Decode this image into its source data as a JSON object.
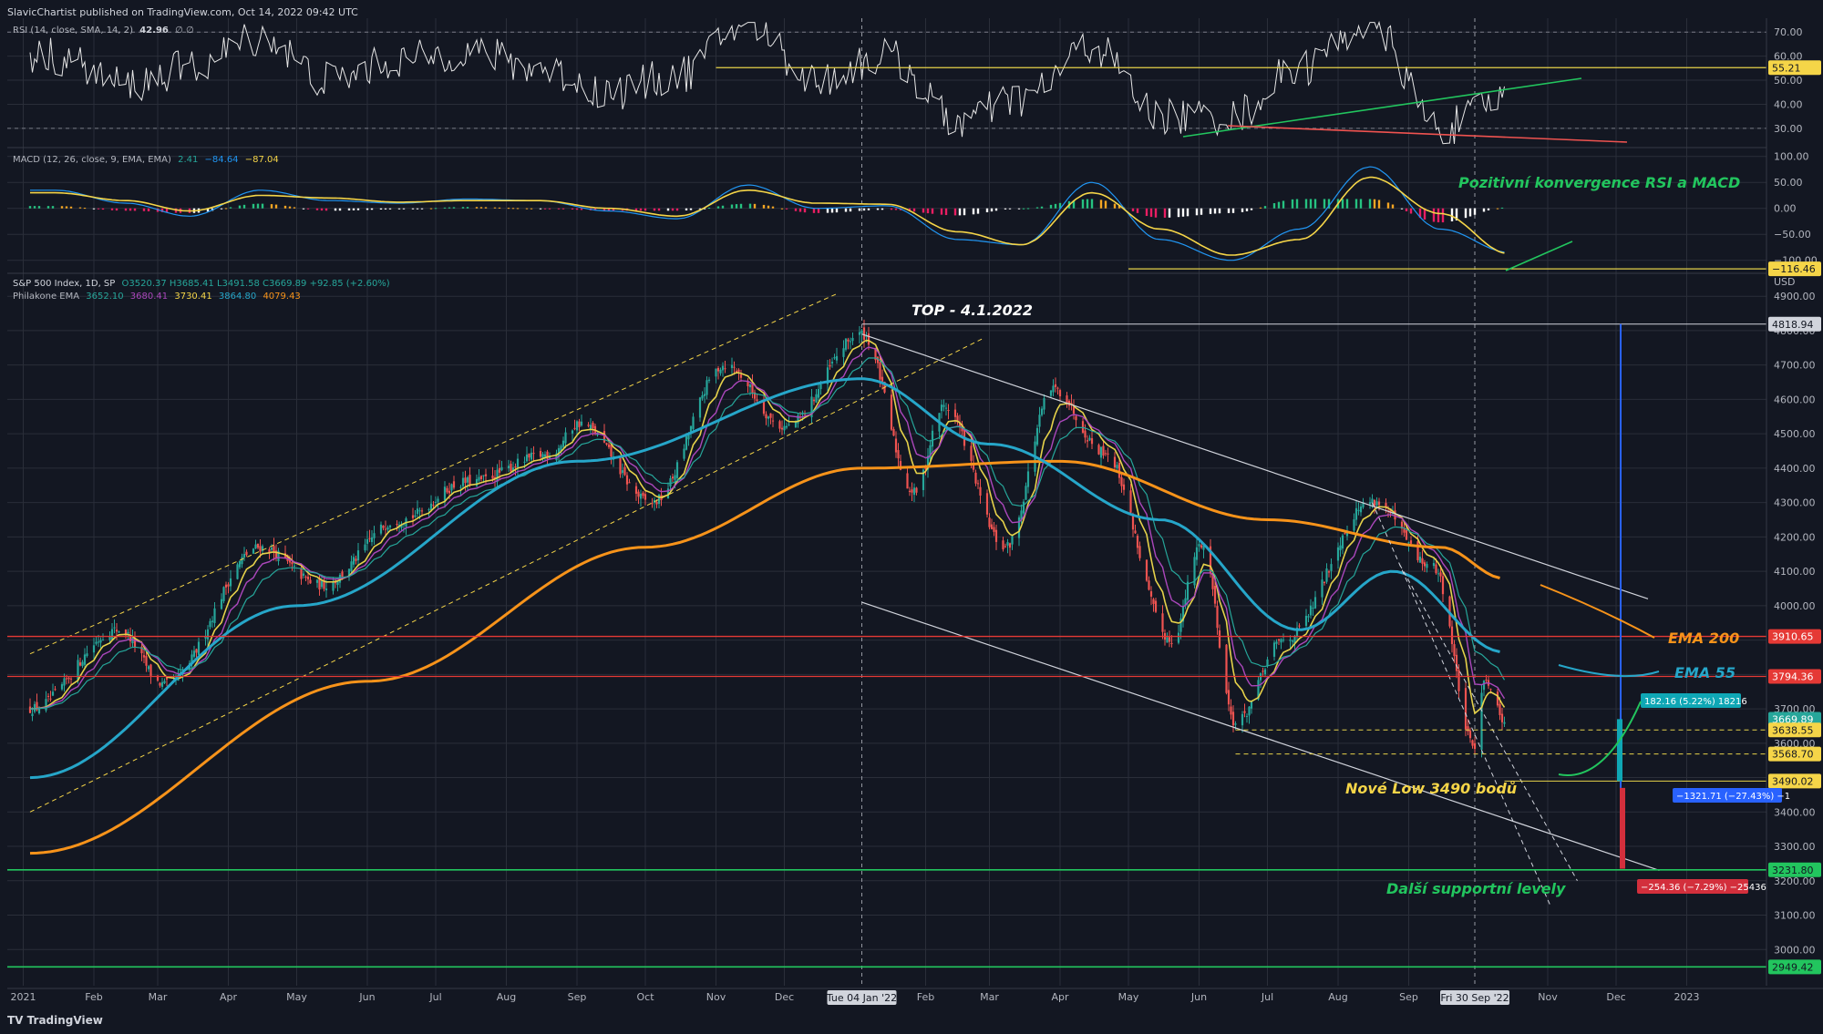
{
  "header": {
    "publisher_line": "SlavicChartist published on TradingView.com, Oct 14, 2022 09:42 UTC"
  },
  "footer": {
    "brand": "TradingView"
  },
  "rsi_legend": {
    "label": "RSI (14, close, SMA, 14, 2)",
    "value": "42.96",
    "extra": "∅ ∅"
  },
  "macd_legend": {
    "label": "MACD (12, 26, close, 9, EMA, EMA)",
    "v1": "2.41",
    "v2": "−84.64",
    "v3": "−87.04"
  },
  "price_legend": {
    "symbol": "S&P 500 Index, 1D, SP",
    "ohlc": "O3520.37  H3685.41  L3491.58  C3669.89  +92.85 (+2.60%)",
    "ema_label": "Philakone EMA",
    "ema_values": [
      "3652.10",
      "3680.41",
      "3730.41",
      "3864.80",
      "4079.43"
    ]
  },
  "colors": {
    "background": "#131722",
    "grid": "#2a2e39",
    "ema200": "#f7931a",
    "ema55": "#26a6c9",
    "ema_fast": "#e6d24a",
    "ema_mid": "#ab47bc",
    "up": "#26a69a",
    "down": "#ef5350",
    "support": "#22c55e",
    "resistance": "#e53935"
  },
  "chart_data": [
    {
      "type": "line",
      "name": "rsi_panel",
      "title": "RSI (14, close, SMA, 14, 2)",
      "y_ticks": [
        30,
        40,
        50,
        60,
        70
      ],
      "y_tick_labels": [
        "30.00",
        "40.00",
        "50.00",
        "60.00",
        "70.00"
      ],
      "ylim": [
        22,
        75
      ],
      "current_value": 42.96,
      "reference_level": 55.21,
      "reference_label": "55.21",
      "x": [
        "2021-01",
        "2021-02",
        "2021-03",
        "2021-04",
        "2021-05",
        "2021-06",
        "2021-07",
        "2021-08",
        "2021-09",
        "2021-10",
        "2021-11",
        "2021-12",
        "2022-01",
        "2022-02",
        "2022-03",
        "2022-04",
        "2022-05",
        "2022-06",
        "2022-07",
        "2022-08",
        "2022-09",
        "2022-10"
      ],
      "values": [
        60,
        48,
        55,
        68,
        50,
        58,
        62,
        55,
        45,
        52,
        74,
        50,
        60,
        33,
        42,
        64,
        35,
        35,
        55,
        74,
        30,
        42.96
      ]
    },
    {
      "type": "bar",
      "name": "macd_panel",
      "title": "MACD (12, 26, close, 9, EMA, EMA)",
      "y_ticks": [
        -100,
        -50,
        0,
        50,
        100
      ],
      "y_tick_labels": [
        "−100.00",
        "−50.00",
        "0.00",
        "50.00",
        "100.00"
      ],
      "ylim": [
        -125,
        110
      ],
      "reference_level": -116.46,
      "reference_label": "−116.46",
      "x": [
        "2021-01",
        "2021-02",
        "2021-03",
        "2021-04",
        "2021-05",
        "2021-06",
        "2021-07",
        "2021-08",
        "2021-09",
        "2021-10",
        "2021-11",
        "2021-12",
        "2022-01",
        "2022-02",
        "2022-03",
        "2022-04",
        "2022-05",
        "2022-06",
        "2022-07",
        "2022-08",
        "2022-09",
        "2022-10"
      ],
      "series": [
        {
          "name": "MACD",
          "values": [
            35,
            10,
            -15,
            35,
            15,
            10,
            18,
            15,
            -5,
            -20,
            45,
            0,
            5,
            -60,
            -70,
            50,
            -60,
            -100,
            -40,
            80,
            -40,
            -84.64
          ]
        },
        {
          "name": "Signal",
          "values": [
            30,
            15,
            -5,
            25,
            20,
            12,
            15,
            15,
            0,
            -15,
            35,
            10,
            8,
            -45,
            -70,
            30,
            -40,
            -90,
            -60,
            60,
            -10,
            -87.04
          ]
        }
      ]
    },
    {
      "type": "candlestick",
      "name": "price_panel",
      "title": "S&P 500 Index, 1D, SP",
      "currency": "USD",
      "y_ticks": [
        3000,
        3100,
        3200,
        3300,
        3400,
        3500,
        3600,
        3700,
        3800,
        3900,
        4000,
        4100,
        4200,
        4300,
        4400,
        4500,
        4600,
        4700,
        4800,
        4900
      ],
      "ylim": [
        2900,
        4980
      ],
      "x_tick_labels": [
        "2021",
        "Feb",
        "Mar",
        "Apr",
        "May",
        "Jun",
        "Jul",
        "Aug",
        "Sep",
        "Oct",
        "Nov",
        "Dec",
        "Feb",
        "Mar",
        "Apr",
        "May",
        "Jun",
        "Jul",
        "Aug",
        "Sep",
        "Nov",
        "Dec",
        "2023"
      ],
      "x_tick_dates": [
        "2021-01-01",
        "2021-02-01",
        "2021-03-01",
        "2021-04-01",
        "2021-05-01",
        "2021-06-01",
        "2021-07-01",
        "2021-08-01",
        "2021-09-01",
        "2021-10-01",
        "2021-11-01",
        "2021-12-01",
        "2022-02-01",
        "2022-03-01",
        "2022-04-01",
        "2022-05-01",
        "2022-06-01",
        "2022-07-01",
        "2022-08-01",
        "2022-09-01",
        "2022-11-01",
        "2022-12-01",
        "2023-01-01"
      ],
      "crosshair_labels": [
        {
          "date": "2022-01-04",
          "text": "Tue 04 Jan '22"
        },
        {
          "date": "2022-09-30",
          "text": "Fri 30 Sep '22"
        }
      ],
      "anchors": [
        {
          "date": "2021-01-04",
          "close": 3700
        },
        {
          "date": "2021-02-12",
          "close": 3930
        },
        {
          "date": "2021-03-04",
          "close": 3770
        },
        {
          "date": "2021-04-15",
          "close": 4170
        },
        {
          "date": "2021-05-12",
          "close": 4060
        },
        {
          "date": "2021-06-15",
          "close": 4250
        },
        {
          "date": "2021-07-15",
          "close": 4360
        },
        {
          "date": "2021-08-20",
          "close": 4440
        },
        {
          "date": "2021-09-02",
          "close": 4530
        },
        {
          "date": "2021-10-04",
          "close": 4300
        },
        {
          "date": "2021-11-05",
          "close": 4700
        },
        {
          "date": "2021-12-01",
          "close": 4520
        },
        {
          "date": "2022-01-04",
          "close": 4790
        },
        {
          "date": "2022-01-27",
          "close": 4330
        },
        {
          "date": "2022-02-09",
          "close": 4580
        },
        {
          "date": "2022-03-08",
          "close": 4170
        },
        {
          "date": "2022-03-29",
          "close": 4630
        },
        {
          "date": "2022-04-20",
          "close": 4450
        },
        {
          "date": "2022-05-20",
          "close": 3900
        },
        {
          "date": "2022-06-02",
          "close": 4180
        },
        {
          "date": "2022-06-17",
          "close": 3660
        },
        {
          "date": "2022-07-08",
          "close": 3900
        },
        {
          "date": "2022-08-16",
          "close": 4305
        },
        {
          "date": "2022-09-12",
          "close": 4110
        },
        {
          "date": "2022-09-30",
          "close": 3585
        },
        {
          "date": "2022-10-04",
          "close": 3790
        },
        {
          "date": "2022-10-13",
          "close": 3669.89
        }
      ],
      "ema200": [
        {
          "date": "2021-01-04",
          "value": 3280
        },
        {
          "date": "2021-06-01",
          "value": 3780
        },
        {
          "date": "2021-10-01",
          "value": 4170
        },
        {
          "date": "2022-01-04",
          "value": 4400
        },
        {
          "date": "2022-04-01",
          "value": 4420
        },
        {
          "date": "2022-07-01",
          "value": 4250
        },
        {
          "date": "2022-09-15",
          "value": 4170
        },
        {
          "date": "2022-10-13",
          "value": 4079.43
        }
      ],
      "ema55": [
        {
          "date": "2021-01-04",
          "value": 3500
        },
        {
          "date": "2021-05-01",
          "value": 4000
        },
        {
          "date": "2021-09-01",
          "value": 4420
        },
        {
          "date": "2022-01-04",
          "value": 4660
        },
        {
          "date": "2022-03-01",
          "value": 4470
        },
        {
          "date": "2022-05-15",
          "value": 4250
        },
        {
          "date": "2022-07-15",
          "value": 3930
        },
        {
          "date": "2022-08-25",
          "value": 4100
        },
        {
          "date": "2022-10-13",
          "value": 3864.8
        }
      ],
      "horizontal_levels": [
        {
          "value": 4818.94,
          "label": "4818.94",
          "kind": "top"
        },
        {
          "value": 3910.65,
          "label": "3910.65",
          "kind": "resistance"
        },
        {
          "value": 3794.36,
          "label": "3794.36",
          "kind": "resistance"
        },
        {
          "value": 3669.89,
          "label": "3669.89",
          "kind": "last"
        },
        {
          "value": 3638.55,
          "label": "3638.55",
          "kind": "dashed"
        },
        {
          "value": 3568.7,
          "label": "3568.70",
          "kind": "dashed"
        },
        {
          "value": 3490.02,
          "label": "3490.02",
          "kind": "low"
        },
        {
          "value": 3231.8,
          "label": "3231.80",
          "kind": "support"
        },
        {
          "value": 2949.42,
          "label": "2949.42",
          "kind": "support"
        }
      ],
      "annotations": [
        {
          "text": "TOP - 4.1.2022",
          "color": "#ffffff"
        },
        {
          "text": "EMA 200",
          "color": "#f7931a"
        },
        {
          "text": "EMA 55",
          "color": "#26a6c9"
        },
        {
          "text": "Nové Low 3490 bodů",
          "color": "#f5d548"
        },
        {
          "text": "Další supportní levely",
          "color": "#22c55e"
        },
        {
          "text": "Pozitivní konvergence RSI a MACD",
          "color": "#22c55e"
        }
      ],
      "measure_labels": [
        {
          "text": "182.16 (5.22%) 18216",
          "color": "#0fa7b5"
        },
        {
          "text": "−1321.71 (−27.43%) −1",
          "color": "#2962ff"
        },
        {
          "text": "−254.36 (−7.29%) −25436",
          "color": "#d32f3c"
        }
      ]
    }
  ]
}
